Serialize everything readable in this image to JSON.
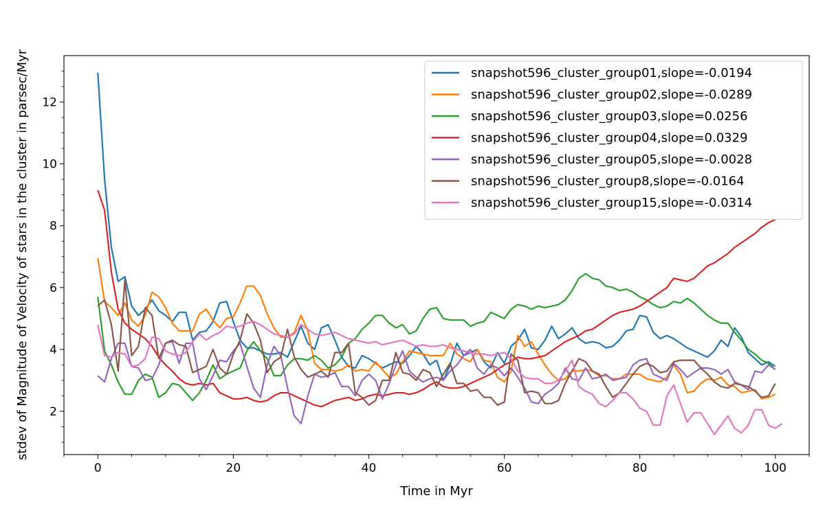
{
  "chart_data": {
    "type": "line",
    "xlabel": "Time in Myr",
    "ylabel": "stdev of Magnitude of Velocity of stars in the cluster in parsec/Myr",
    "xlim": [
      -5,
      105
    ],
    "ylim": [
      0.6,
      13.5
    ],
    "x_ticks": [
      0,
      20,
      40,
      60,
      80,
      100
    ],
    "x_tick_labels": [
      "0",
      "20",
      "40",
      "60",
      "80",
      "100"
    ],
    "y_ticks": [
      2,
      4,
      6,
      8,
      10,
      12
    ],
    "y_tick_labels": [
      "2",
      "4",
      "6",
      "8",
      "10",
      "12"
    ],
    "legend_position": "top-right",
    "grid": false,
    "x_step": 1,
    "series": [
      {
        "name": "snapshot596_cluster_group01,slope=-0.0194",
        "color": "#1f77b4",
        "values": [
          12.95,
          9.5,
          7.3,
          6.2,
          6.35,
          5.4,
          5.1,
          5.3,
          5.6,
          5.25,
          5.1,
          4.9,
          5.2,
          5.2,
          4.3,
          4.55,
          4.6,
          4.9,
          5.5,
          5.55,
          4.9,
          4.3,
          4.05,
          4.05,
          3.95,
          3.85,
          3.85,
          3.9,
          3.75,
          4.25,
          4.75,
          4.2,
          4.0,
          4.7,
          4.8,
          4.3,
          3.75,
          3.45,
          3.4,
          3.8,
          3.7,
          3.55,
          3.4,
          3.5,
          3.6,
          3.55,
          3.8,
          4.1,
          3.85,
          3.5,
          3.65,
          3.0,
          3.5,
          4.2,
          3.8,
          3.9,
          4.0,
          3.6,
          3.4,
          3.9,
          3.55,
          4.1,
          4.3,
          4.65,
          4.05,
          4.0,
          4.3,
          4.75,
          4.35,
          4.5,
          4.7,
          4.35,
          4.2,
          4.25,
          4.2,
          4.05,
          4.1,
          4.3,
          4.6,
          4.65,
          5.1,
          5.05,
          4.55,
          4.35,
          4.45,
          4.35,
          4.2,
          4.05,
          3.95,
          3.85,
          3.75,
          3.95,
          4.3,
          4.1,
          4.7,
          4.4,
          3.9,
          3.7,
          3.5,
          3.6,
          3.45
        ]
      },
      {
        "name": "snapshot596_cluster_group02,slope=-0.0289",
        "color": "#ff7f0e",
        "values": [
          6.95,
          5.55,
          5.35,
          5.1,
          5.5,
          4.95,
          4.75,
          5.1,
          5.85,
          5.7,
          5.35,
          4.85,
          4.6,
          4.6,
          4.6,
          5.15,
          5.3,
          4.95,
          4.7,
          5.0,
          5.05,
          5.5,
          6.05,
          6.05,
          5.75,
          5.15,
          4.7,
          4.4,
          4.4,
          4.55,
          5.1,
          4.6,
          3.55,
          3.35,
          3.35,
          3.3,
          3.35,
          3.5,
          3.3,
          3.35,
          3.3,
          3.6,
          3.35,
          3.1,
          3.2,
          3.6,
          3.95,
          3.9,
          3.85,
          3.8,
          3.8,
          3.8,
          4.2,
          3.85,
          3.7,
          3.6,
          4.0,
          3.65,
          3.6,
          3.1,
          2.95,
          3.3,
          4.45,
          4.1,
          4.25,
          3.85,
          3.5,
          3.2,
          3.0,
          3.05,
          3.3,
          3.3,
          3.35,
          3.3,
          3.15,
          3.15,
          3.05,
          3.05,
          3.2,
          3.2,
          3.2,
          3.05,
          3.0,
          2.95,
          3.1,
          3.5,
          3.2,
          2.6,
          2.65,
          2.9,
          3.05,
          3.0,
          3.1,
          2.85,
          2.8,
          2.6,
          2.65,
          2.7,
          2.4,
          2.45,
          2.55
        ]
      },
      {
        "name": "snapshot596_cluster_group03,slope=0.0256",
        "color": "#2ca02c",
        "values": [
          5.7,
          3.95,
          3.5,
          2.95,
          2.55,
          2.55,
          3.0,
          3.2,
          3.1,
          2.45,
          2.6,
          2.9,
          2.85,
          2.6,
          2.35,
          2.6,
          3.0,
          3.5,
          3.05,
          3.2,
          3.3,
          3.4,
          3.95,
          4.25,
          3.95,
          3.7,
          3.15,
          3.15,
          3.5,
          3.7,
          3.7,
          3.65,
          3.8,
          3.65,
          3.4,
          3.5,
          3.75,
          4.2,
          4.35,
          4.65,
          4.85,
          5.1,
          5.1,
          4.85,
          4.7,
          4.8,
          4.5,
          4.6,
          5.0,
          5.3,
          5.35,
          5.0,
          4.95,
          4.95,
          4.95,
          4.75,
          4.85,
          4.9,
          5.2,
          5.1,
          5.0,
          5.3,
          5.45,
          5.4,
          5.3,
          5.4,
          5.35,
          5.4,
          5.45,
          5.6,
          5.9,
          6.3,
          6.45,
          6.3,
          6.25,
          6.05,
          6.0,
          5.9,
          5.95,
          5.85,
          5.7,
          5.6,
          5.45,
          5.35,
          5.4,
          5.55,
          5.5,
          5.65,
          5.5,
          5.3,
          5.1,
          4.95,
          4.85,
          4.85,
          4.55,
          4.3,
          4.0,
          3.85,
          3.65,
          3.55,
          3.35
        ]
      },
      {
        "name": "snapshot596_cluster_group04,slope=0.0329",
        "color": "#d62728",
        "values": [
          9.15,
          8.5,
          6.5,
          5.3,
          4.85,
          4.65,
          4.5,
          4.35,
          4.1,
          3.75,
          3.5,
          3.3,
          3.05,
          2.9,
          2.85,
          2.9,
          2.85,
          2.9,
          2.6,
          2.5,
          2.4,
          2.4,
          2.45,
          2.35,
          2.3,
          2.35,
          2.5,
          2.6,
          2.6,
          2.5,
          2.4,
          2.3,
          2.2,
          2.15,
          2.25,
          2.35,
          2.4,
          2.45,
          2.35,
          2.4,
          2.5,
          2.55,
          2.5,
          2.55,
          2.6,
          2.6,
          2.55,
          2.6,
          2.7,
          2.85,
          2.95,
          2.8,
          2.75,
          2.75,
          2.8,
          2.9,
          3.0,
          3.1,
          3.2,
          3.35,
          3.5,
          3.6,
          3.75,
          3.7,
          3.7,
          3.75,
          3.8,
          3.95,
          4.1,
          4.25,
          4.35,
          4.45,
          4.6,
          4.65,
          4.8,
          4.95,
          5.1,
          5.2,
          5.25,
          5.3,
          5.4,
          5.55,
          5.7,
          5.85,
          6.0,
          6.3,
          6.25,
          6.2,
          6.3,
          6.5,
          6.7,
          6.8,
          6.95,
          7.1,
          7.3,
          7.45,
          7.6,
          7.75,
          7.95,
          8.1,
          8.2
        ]
      },
      {
        "name": "snapshot596_cluster_group05,slope=-0.0028",
        "color": "#9467bd",
        "values": [
          3.15,
          2.95,
          3.7,
          4.2,
          4.2,
          3.45,
          3.4,
          3.0,
          3.05,
          3.5,
          4.2,
          4.25,
          3.55,
          4.2,
          4.2,
          3.05,
          2.7,
          3.15,
          3.65,
          3.6,
          3.95,
          4.2,
          3.45,
          2.75,
          2.45,
          3.5,
          4.1,
          3.8,
          2.75,
          1.85,
          1.6,
          2.5,
          3.2,
          3.1,
          3.15,
          3.25,
          2.8,
          2.8,
          2.5,
          3.0,
          3.2,
          3.0,
          2.4,
          2.9,
          3.5,
          3.95,
          3.3,
          3.1,
          2.95,
          3.05,
          3.1,
          3.0,
          3.3,
          3.5,
          3.8,
          4.0,
          3.4,
          3.2,
          3.5,
          3.4,
          3.15,
          3.4,
          3.1,
          2.75,
          2.3,
          2.25,
          2.55,
          2.7,
          2.9,
          3.4,
          3.05,
          3.0,
          3.4,
          3.05,
          3.1,
          3.2,
          3.0,
          3.05,
          3.1,
          3.5,
          3.65,
          3.7,
          3.2,
          3.1,
          3.0,
          3.55,
          3.35,
          3.1,
          3.25,
          3.4,
          3.4,
          3.35,
          3.2,
          3.35,
          2.95,
          2.85,
          2.7,
          3.3,
          3.25,
          3.5,
          3.35
        ]
      },
      {
        "name": "snapshot596_cluster_group8,slope=-0.0164",
        "color": "#8c564b",
        "values": [
          5.4,
          5.6,
          4.8,
          3.3,
          6.25,
          3.8,
          4.1,
          5.35,
          5.1,
          3.7,
          4.2,
          4.3,
          4.15,
          4.1,
          3.25,
          3.35,
          3.45,
          4.0,
          3.4,
          3.2,
          3.85,
          4.3,
          5.15,
          4.85,
          4.3,
          3.25,
          3.6,
          3.75,
          4.65,
          3.75,
          3.35,
          3.1,
          3.2,
          3.3,
          3.1,
          3.9,
          3.9,
          4.2,
          2.6,
          2.45,
          2.2,
          2.35,
          3.0,
          3.0,
          3.9,
          3.25,
          3.2,
          3.0,
          3.35,
          3.25,
          2.8,
          3.2,
          3.55,
          2.9,
          2.9,
          2.65,
          2.7,
          2.45,
          2.45,
          2.2,
          2.3,
          3.85,
          3.65,
          2.6,
          2.65,
          2.6,
          2.25,
          2.25,
          2.35,
          2.9,
          3.3,
          3.7,
          3.6,
          3.3,
          3.2,
          2.8,
          2.45,
          2.6,
          2.9,
          3.2,
          3.45,
          3.55,
          3.45,
          3.25,
          3.3,
          3.6,
          3.65,
          3.65,
          3.65,
          3.4,
          3.2,
          2.95,
          2.8,
          2.75,
          2.9,
          2.85,
          2.8,
          2.65,
          2.45,
          2.5,
          2.9
        ]
      },
      {
        "name": "snapshot596_cluster_group15,slope=-0.0314",
        "color": "#e377c2",
        "values": [
          4.8,
          3.8,
          3.75,
          3.9,
          3.85,
          3.45,
          3.5,
          3.7,
          4.4,
          4.35,
          3.95,
          3.85,
          3.8,
          3.9,
          4.25,
          4.5,
          4.3,
          4.45,
          4.55,
          4.75,
          4.7,
          4.75,
          4.85,
          4.9,
          4.8,
          4.65,
          4.5,
          4.45,
          4.4,
          4.5,
          4.8,
          4.65,
          4.5,
          4.45,
          4.5,
          4.55,
          4.45,
          4.35,
          4.3,
          4.25,
          4.2,
          4.25,
          4.15,
          4.2,
          4.25,
          4.3,
          4.2,
          4.1,
          4.15,
          4.1,
          4.1,
          4.15,
          4.05,
          4.0,
          3.95,
          3.9,
          3.85,
          3.85,
          3.8,
          3.85,
          3.9,
          3.7,
          3.3,
          3.1,
          3.05,
          3.05,
          2.9,
          2.9,
          3.0,
          3.3,
          3.65,
          2.8,
          2.65,
          2.55,
          2.25,
          2.15,
          2.35,
          2.6,
          2.6,
          2.4,
          2.1,
          2.0,
          1.55,
          1.55,
          2.5,
          2.85,
          2.25,
          1.65,
          1.95,
          1.95,
          1.6,
          1.25,
          1.55,
          1.85,
          1.45,
          1.3,
          1.55,
          2.05,
          2.05,
          1.55,
          1.45,
          1.6
        ]
      }
    ]
  }
}
